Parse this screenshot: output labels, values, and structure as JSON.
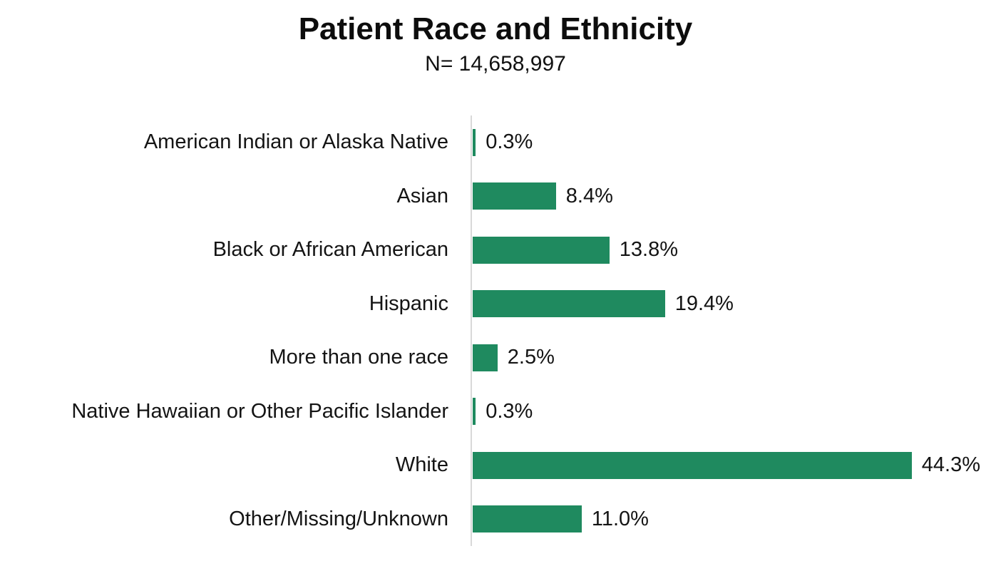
{
  "header": {
    "title": "Patient Race and Ethnicity",
    "subtitle": "N= 14,658,997"
  },
  "chart_data": {
    "type": "bar",
    "orientation": "horizontal",
    "title": "Patient Race and Ethnicity",
    "subtitle": "N= 14,658,997",
    "xlabel": "",
    "ylabel": "",
    "categories": [
      "American Indian or Alaska Native",
      "Asian",
      "Black or African American",
      "Hispanic",
      "More than one race",
      "Native Hawaiian or Other Pacific Islander",
      "White",
      "Other/Missing/Unknown"
    ],
    "values": [
      0.3,
      8.4,
      13.8,
      19.4,
      2.5,
      0.3,
      44.3,
      11.0
    ],
    "value_labels": [
      "0.3%",
      "8.4%",
      "13.8%",
      "19.4%",
      "2.5%",
      "0.3%",
      "44.3%",
      "11.0%"
    ],
    "xlim": [
      0,
      52
    ],
    "grid": false,
    "legend": "none",
    "data_labels": true,
    "bar_color": "#1f8a5f",
    "axis_line_color": "#d9d9d9"
  }
}
